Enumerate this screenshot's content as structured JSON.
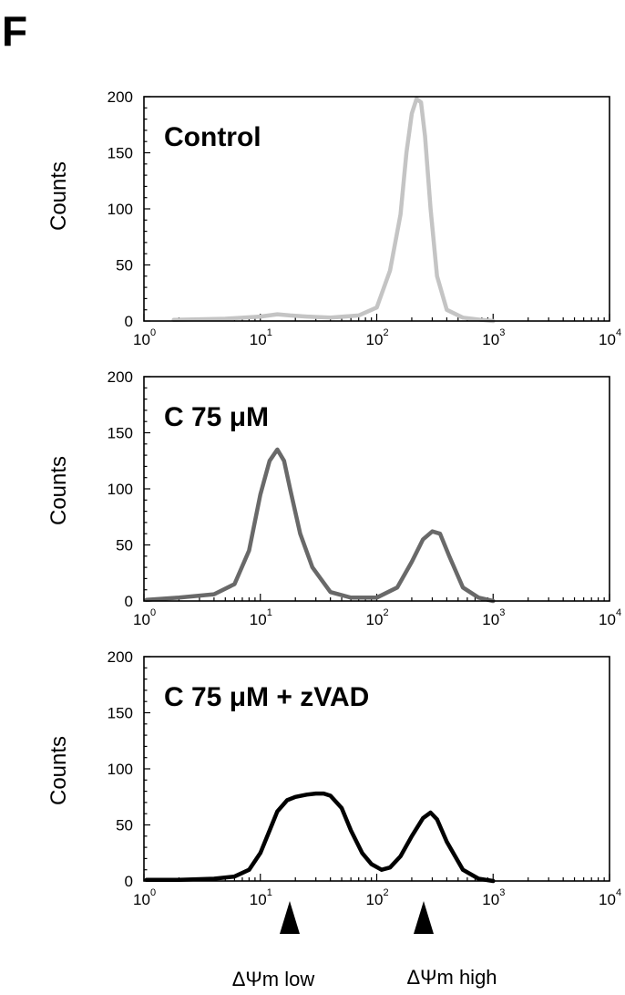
{
  "figure": {
    "panel_letter": "F"
  },
  "chart_data": [
    {
      "type": "line",
      "label": "Control",
      "ylabel": "Counts",
      "xscale": "log",
      "xlim": [
        1,
        10000
      ],
      "ylim": [
        0,
        200
      ],
      "yticks": [
        "0",
        "50",
        "100",
        "150",
        "200"
      ],
      "xticks": [
        {
          "base": "10",
          "exp": "0"
        },
        {
          "base": "10",
          "exp": "1"
        },
        {
          "base": "10",
          "exp": "2"
        },
        {
          "base": "10",
          "exp": "3"
        },
        {
          "base": "10",
          "exp": "4"
        }
      ],
      "color": "#c4c4c4",
      "x": [
        1.8,
        5,
        10,
        14,
        18,
        25,
        40,
        70,
        100,
        130,
        160,
        180,
        200,
        220,
        240,
        260,
        290,
        330,
        400,
        550,
        800,
        1000
      ],
      "y": [
        1,
        2,
        4,
        6,
        5,
        4,
        3,
        5,
        12,
        45,
        95,
        150,
        185,
        198,
        195,
        165,
        100,
        40,
        10,
        3,
        1,
        0
      ]
    },
    {
      "type": "line",
      "label": "C 75 μM",
      "ylabel": "Counts",
      "xscale": "log",
      "xlim": [
        1,
        10000
      ],
      "ylim": [
        0,
        200
      ],
      "yticks": [
        "0",
        "50",
        "100",
        "150",
        "200"
      ],
      "xticks": [
        {
          "base": "10",
          "exp": "0"
        },
        {
          "base": "10",
          "exp": "1"
        },
        {
          "base": "10",
          "exp": "2"
        },
        {
          "base": "10",
          "exp": "3"
        },
        {
          "base": "10",
          "exp": "4"
        }
      ],
      "color": "#696969",
      "x": [
        1.05,
        2,
        4,
        6,
        8,
        10,
        12,
        14,
        16,
        18,
        22,
        28,
        40,
        60,
        100,
        150,
        200,
        250,
        300,
        350,
        420,
        550,
        750,
        1000
      ],
      "y": [
        1,
        3,
        6,
        15,
        45,
        95,
        125,
        135,
        125,
        100,
        60,
        30,
        8,
        3,
        3,
        12,
        35,
        55,
        62,
        60,
        40,
        12,
        3,
        0
      ]
    },
    {
      "type": "line",
      "label": "C 75 μM + zVAD",
      "ylabel": "Counts",
      "xscale": "log",
      "xlim": [
        1,
        10000
      ],
      "ylim": [
        0,
        200
      ],
      "yticks": [
        "0",
        "50",
        "100",
        "150",
        "200"
      ],
      "xticks": [
        {
          "base": "10",
          "exp": "0"
        },
        {
          "base": "10",
          "exp": "1"
        },
        {
          "base": "10",
          "exp": "2"
        },
        {
          "base": "10",
          "exp": "3"
        },
        {
          "base": "10",
          "exp": "4"
        }
      ],
      "color": "#000000",
      "x": [
        1.05,
        2,
        4,
        6,
        8,
        10,
        12,
        14,
        17,
        20,
        25,
        30,
        35,
        40,
        50,
        60,
        75,
        90,
        110,
        130,
        160,
        200,
        250,
        290,
        330,
        400,
        550,
        750,
        1000
      ],
      "y": [
        1,
        1,
        2,
        4,
        10,
        25,
        45,
        62,
        72,
        75,
        77,
        78,
        78,
        76,
        65,
        45,
        25,
        15,
        10,
        12,
        22,
        40,
        56,
        61,
        55,
        35,
        10,
        2,
        0
      ]
    }
  ],
  "annotations": {
    "low": "ΔΨm low",
    "high": "ΔΨm high"
  }
}
